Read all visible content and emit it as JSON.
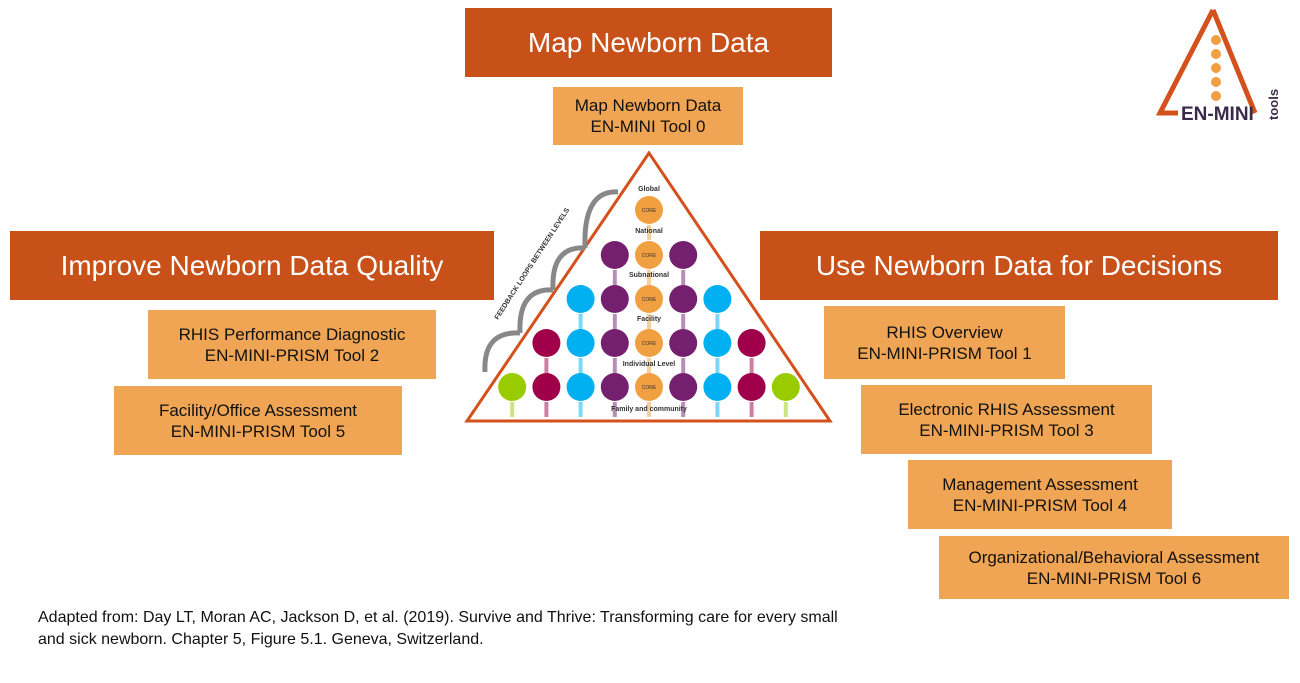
{
  "headers": {
    "map": "Map Newborn Data",
    "improve": "Improve Newborn Data Quality",
    "use": "Use Newborn Data for Decisions"
  },
  "tools": [
    {
      "name": "Map Newborn Data",
      "tool": "EN-MINI Tool 0"
    },
    {
      "name": "RHIS Performance Diagnostic",
      "tool": "EN-MINI-PRISM Tool 2"
    },
    {
      "name": "Facility/Office Assessment",
      "tool": "EN-MINI-PRISM Tool 5"
    },
    {
      "name": "RHIS Overview",
      "tool": "EN-MINI-PRISM Tool 1"
    },
    {
      "name": "Electronic RHIS Assessment",
      "tool": "EN-MINI-PRISM Tool 3"
    },
    {
      "name": "Management Assessment",
      "tool": "EN-MINI-PRISM Tool 4"
    },
    {
      "name": "Organizational/Behavioral Assessment",
      "tool": "EN-MINI-PRISM Tool 6"
    }
  ],
  "pyramid": {
    "feedback_label": "FEEDBACK LOOPS BETWEEN LEVELS",
    "core_label": "CORE",
    "levels": [
      "Global",
      "National",
      "Subnational",
      "Facility",
      "Individual Level",
      "Family and community"
    ],
    "rows": [
      [
        "core"
      ],
      [
        "purple",
        "core",
        "purple"
      ],
      [
        "blue",
        "purple",
        "core",
        "purple",
        "blue"
      ],
      [
        "maroon",
        "blue",
        "purple",
        "core",
        "purple",
        "blue",
        "maroon"
      ],
      [
        "green",
        "maroon",
        "blue",
        "purple",
        "core",
        "purple",
        "blue",
        "maroon",
        "green"
      ]
    ],
    "colors": {
      "core": "#f0a040",
      "purple": "#74206f",
      "blue": "#00b0f0",
      "maroon": "#a0004a",
      "green": "#99cc00",
      "outline": "#d4501c"
    }
  },
  "logo": {
    "text": "EN-MINI",
    "subtext": "tools"
  },
  "caption": "Adapted from: Day LT, Moran AC, Jackson D, et al. (2019). Survive and Thrive: Transforming care for every small and sick newborn. Chapter 5, Figure 5.1. Geneva, Switzerland."
}
